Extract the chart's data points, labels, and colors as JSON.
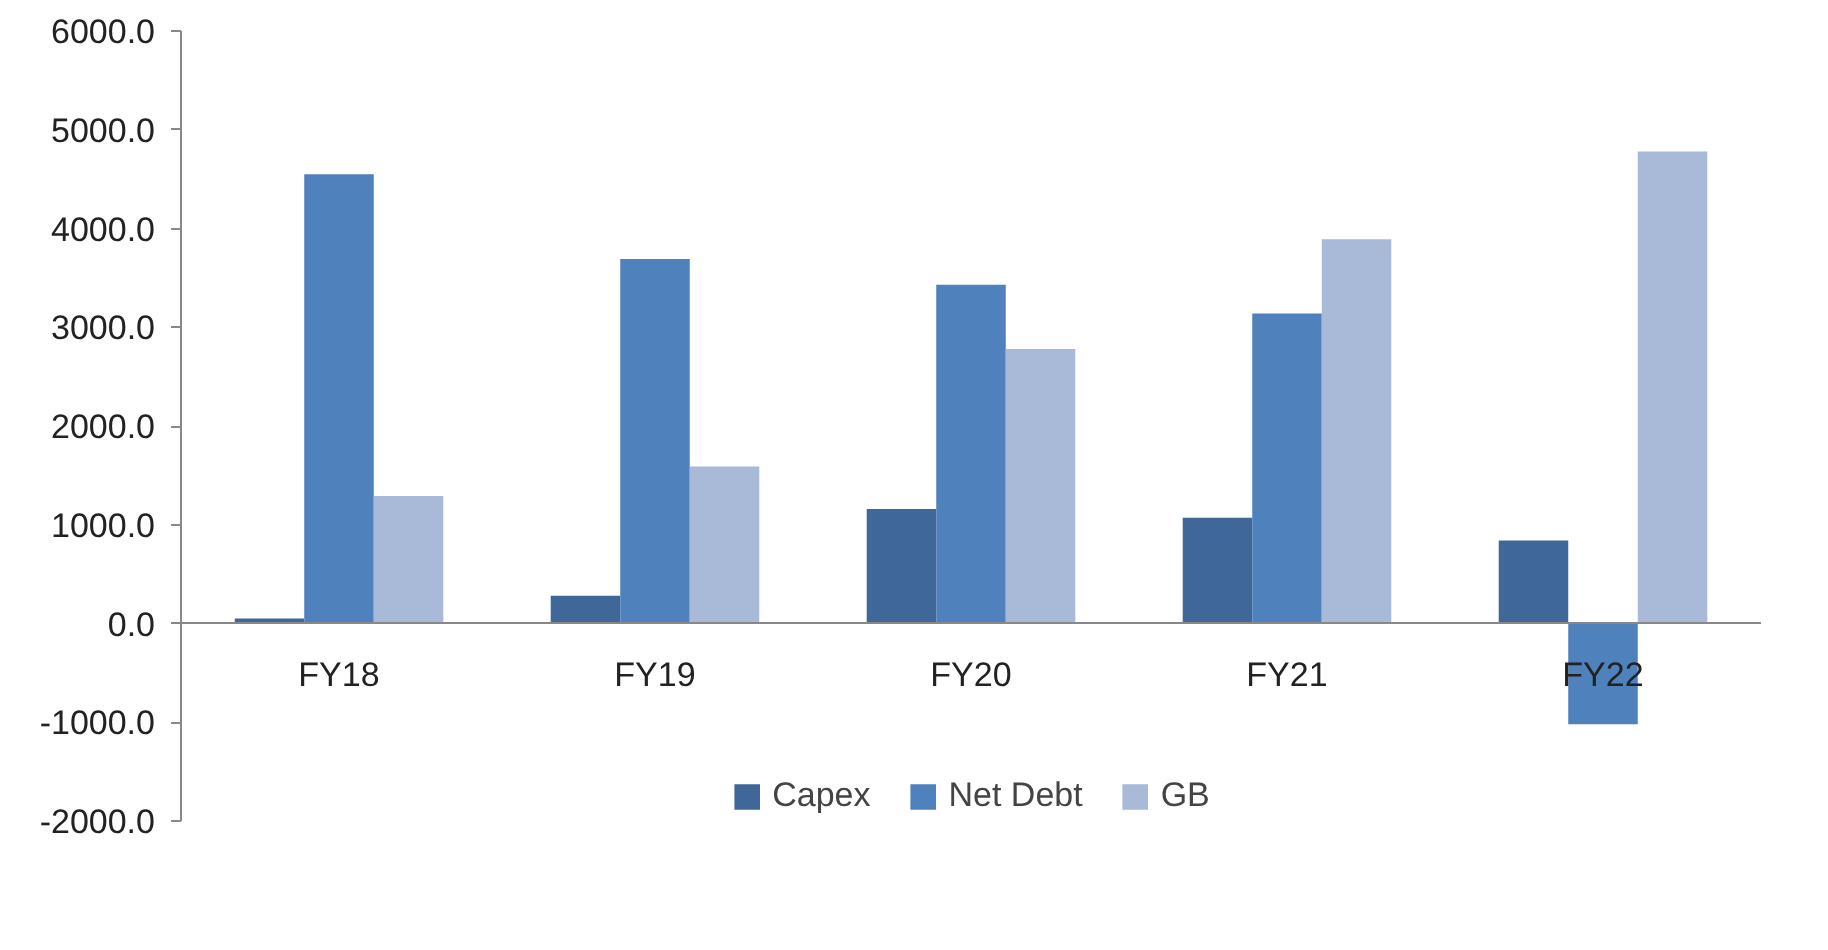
{
  "chart_data": {
    "type": "bar",
    "categories": [
      "FY18",
      "FY19",
      "FY20",
      "FY21",
      "FY22"
    ],
    "series": [
      {
        "name": "Capex",
        "color": "#3f6797",
        "values": [
          50,
          280,
          1160,
          1070,
          840
        ]
      },
      {
        "name": "Net Debt",
        "color": "#4f81bd",
        "values": [
          4550,
          3690,
          3430,
          3140,
          -1020
        ]
      },
      {
        "name": "GB",
        "color": "#a9b9d8",
        "values": [
          1290,
          1590,
          2780,
          3890,
          4780
        ]
      }
    ],
    "ylim": [
      -2000,
      6000
    ],
    "yticks": [
      {
        "value": -2000,
        "label": "-2000.0"
      },
      {
        "value": -1000,
        "label": "-1000.0"
      },
      {
        "value": 0,
        "label": "0.0"
      },
      {
        "value": 1000,
        "label": "1000.0"
      },
      {
        "value": 2000,
        "label": "2000.0"
      },
      {
        "value": 3000,
        "label": "3000.0"
      },
      {
        "value": 4000,
        "label": "4000.0"
      },
      {
        "value": 5000,
        "label": "5000.0"
      },
      {
        "value": 6000,
        "label": "6000.0"
      }
    ],
    "grid": false,
    "legend": "bottom"
  }
}
